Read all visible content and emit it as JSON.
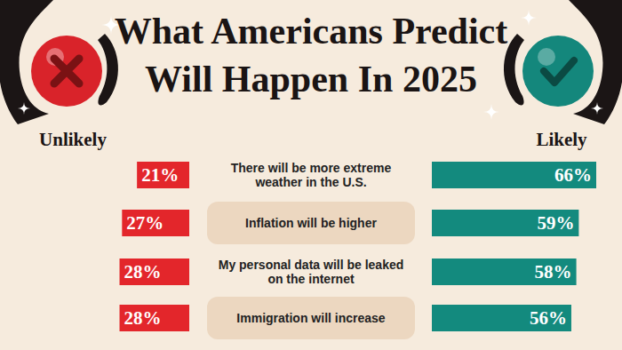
{
  "chart_data": {
    "type": "bar",
    "orientation": "horizontal",
    "title": "What Americans Predict Will Happen In 2025",
    "categories": [
      "There will be more extreme weather in the U.S.",
      "Inflation will be higher",
      "My personal data will be leaked on the internet",
      "Immigration will increase"
    ],
    "series": [
      {
        "name": "Unlikely",
        "color": "#e3262b",
        "values": [
          21,
          27,
          28,
          28
        ],
        "value_labels": [
          "21%",
          "27%",
          "28%",
          "28%"
        ]
      },
      {
        "name": "Likely",
        "color": "#138a7e",
        "values": [
          66,
          59,
          58,
          56
        ],
        "value_labels": [
          "66%",
          "59%",
          "58%",
          "56%"
        ]
      }
    ],
    "xlim": [
      0,
      66
    ],
    "data_labels": true,
    "tick_labels": false
  }
}
